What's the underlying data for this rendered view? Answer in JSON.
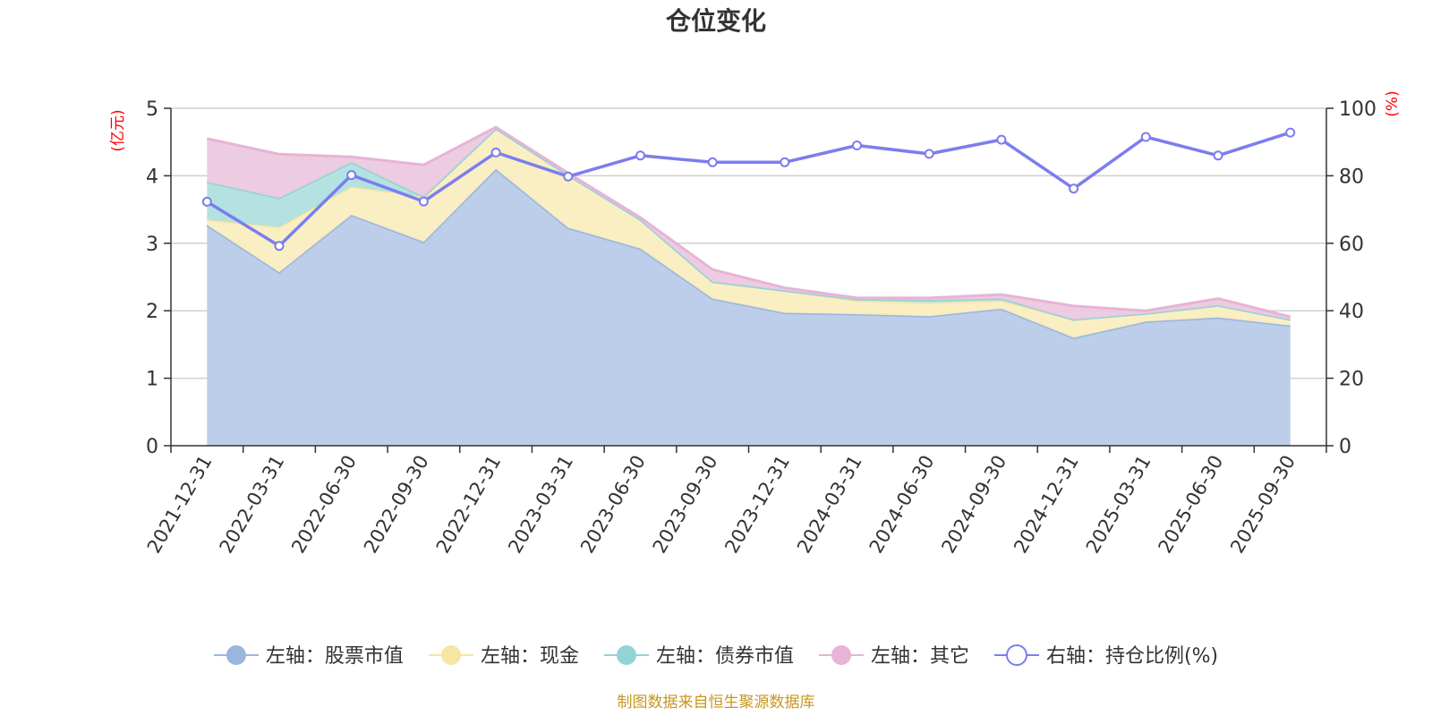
{
  "chart_data": {
    "type": "area",
    "title": "仓位变化",
    "left_unit": "(亿元)",
    "right_unit": "(%)",
    "categories": [
      "2021-12-31",
      "2022-03-31",
      "2022-06-30",
      "2022-09-30",
      "2022-12-31",
      "2023-03-31",
      "2023-06-30",
      "2023-09-30",
      "2023-12-31",
      "2024-03-31",
      "2024-06-30",
      "2024-09-30",
      "2024-12-31",
      "2025-03-31",
      "2025-06-30",
      "2025-09-30"
    ],
    "left_axis": {
      "min": 0,
      "max": 5,
      "ticks": [
        0,
        1,
        2,
        3,
        4,
        5
      ]
    },
    "right_axis": {
      "min": 0,
      "max": 100,
      "ticks": [
        0,
        20,
        40,
        60,
        80,
        100
      ]
    },
    "stacked_series": [
      {
        "name": "左轴：股票市值",
        "values": [
          3.27,
          2.57,
          3.42,
          3.02,
          4.1,
          3.23,
          2.92,
          2.18,
          1.97,
          1.95,
          1.92,
          2.03,
          1.6,
          1.84,
          1.9,
          1.78
        ],
        "fill": "#b8cbe9",
        "line": "#9ab5de"
      },
      {
        "name": "左轴：现金",
        "values": [
          0.08,
          0.67,
          0.42,
          0.67,
          0.6,
          0.78,
          0.43,
          0.25,
          0.33,
          0.2,
          0.2,
          0.12,
          0.27,
          0.12,
          0.18,
          0.09
        ],
        "fill": "#faeec0",
        "line": "#f7e5a3"
      },
      {
        "name": "左轴：债券市值",
        "values": [
          0.56,
          0.43,
          0.36,
          0,
          0,
          0,
          0,
          0,
          0,
          0.02,
          0.04,
          0.03,
          0,
          0,
          0,
          0
        ],
        "fill": "#b0e0de",
        "line": "#93d3d6"
      },
      {
        "name": "左轴：其它",
        "values": [
          0.64,
          0.65,
          0.08,
          0.47,
          0.02,
          0.03,
          0.03,
          0.18,
          0.04,
          0.02,
          0.03,
          0.06,
          0.2,
          0.04,
          0.1,
          0.04
        ],
        "fill": "#ecc9e0",
        "line": "#e7b3d6"
      }
    ],
    "line_series": {
      "name": "右轴：持仓比例(%)",
      "values": [
        72.3,
        59.2,
        80.2,
        72.4,
        86.9,
        79.8,
        86.0,
        84.0,
        84.0,
        89.0,
        86.5,
        90.7,
        76.2,
        91.5,
        86.0,
        92.8
      ],
      "color": "#7b7df0"
    },
    "source": "制图数据来自恒生聚源数据库"
  }
}
